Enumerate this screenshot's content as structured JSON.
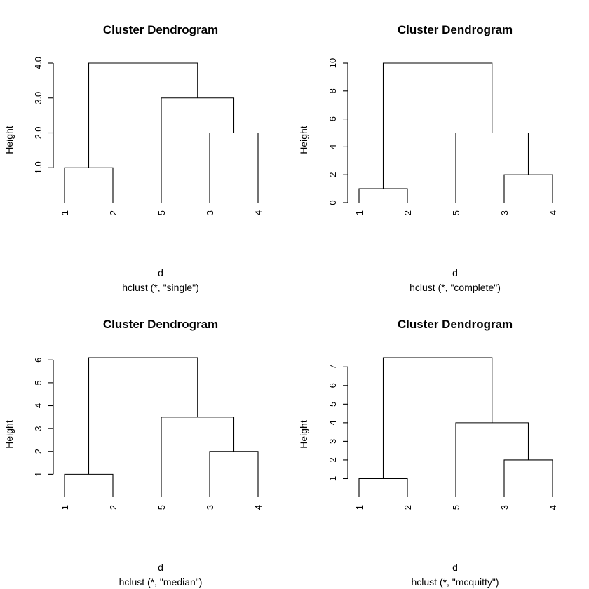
{
  "figure": {
    "chart_data": [
      {
        "type": "dendrogram",
        "title": "Cluster Dendrogram",
        "ylabel": "Height",
        "xlabel": "d",
        "sublabel": "hclust (*, \"single\")",
        "leaf_order": [
          "1",
          "2",
          "5",
          "3",
          "4"
        ],
        "yticks": [
          "1.0",
          "2.0",
          "3.0",
          "4.0"
        ],
        "ylim": [
          0,
          4.0
        ],
        "merges": [
          {
            "left": "1",
            "right": "2",
            "height": 1.0
          },
          {
            "left": "3",
            "right": "4",
            "height": 2.0
          },
          {
            "left": "5",
            "right": "3,4",
            "height": 3.0
          },
          {
            "left": "1,2",
            "right": "5,3,4",
            "height": 4.0
          }
        ]
      },
      {
        "type": "dendrogram",
        "title": "Cluster Dendrogram",
        "ylabel": "Height",
        "xlabel": "d",
        "sublabel": "hclust (*, \"complete\")",
        "leaf_order": [
          "1",
          "2",
          "5",
          "3",
          "4"
        ],
        "yticks": [
          "0",
          "2",
          "4",
          "6",
          "8",
          "10"
        ],
        "ylim": [
          0,
          10
        ],
        "merges": [
          {
            "left": "1",
            "right": "2",
            "height": 1
          },
          {
            "left": "3",
            "right": "4",
            "height": 2
          },
          {
            "left": "5",
            "right": "3,4",
            "height": 5
          },
          {
            "left": "1,2",
            "right": "5,3,4",
            "height": 10
          }
        ]
      },
      {
        "type": "dendrogram",
        "title": "Cluster Dendrogram",
        "ylabel": "Height",
        "xlabel": "d",
        "sublabel": "hclust (*, \"median\")",
        "leaf_order": [
          "1",
          "2",
          "5",
          "3",
          "4"
        ],
        "yticks": [
          "1",
          "2",
          "3",
          "4",
          "5",
          "6"
        ],
        "ylim": [
          0,
          6.1
        ],
        "merges": [
          {
            "left": "1",
            "right": "2",
            "height": 1
          },
          {
            "left": "3",
            "right": "4",
            "height": 2
          },
          {
            "left": "5",
            "right": "3,4",
            "height": 3.5
          },
          {
            "left": "1,2",
            "right": "5,3,4",
            "height": 6.1
          }
        ]
      },
      {
        "type": "dendrogram",
        "title": "Cluster Dendrogram",
        "ylabel": "Height",
        "xlabel": "d",
        "sublabel": "hclust (*, \"mcquitty\")",
        "leaf_order": [
          "1",
          "2",
          "5",
          "3",
          "4"
        ],
        "yticks": [
          "1",
          "2",
          "3",
          "4",
          "5",
          "6",
          "7"
        ],
        "ylim": [
          0,
          7.5
        ],
        "merges": [
          {
            "left": "1",
            "right": "2",
            "height": 1
          },
          {
            "left": "3",
            "right": "4",
            "height": 2
          },
          {
            "left": "5",
            "right": "3,4",
            "height": 4
          },
          {
            "left": "1,2",
            "right": "5,3,4",
            "height": 7.5
          }
        ]
      }
    ]
  }
}
